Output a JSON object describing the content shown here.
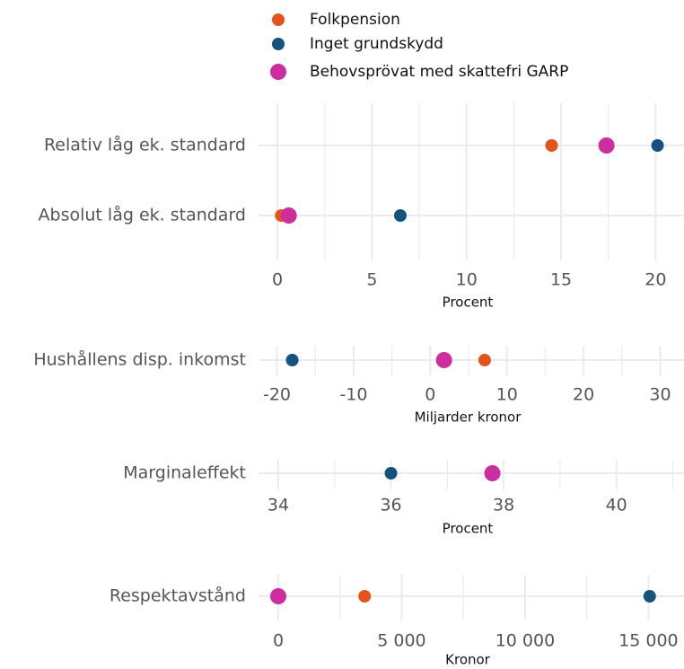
{
  "chart_data": [
    {
      "type": "dot",
      "categories": [
        "Relativ låg ek. standard",
        "Absolut låg ek. standard"
      ],
      "series": [
        {
          "name": "Folkpension",
          "color": "#e4541a",
          "values": [
            14.5,
            0.2
          ]
        },
        {
          "name": "Inget grundskydd",
          "color": "#14527f",
          "values": [
            20.1,
            6.5
          ]
        },
        {
          "name": "Behovsprövat med skattefri GARP",
          "color": "#cc2d9f",
          "values": [
            17.4,
            0.6
          ]
        }
      ],
      "xlim": [
        -1,
        21.5
      ],
      "xticks": [
        0,
        5,
        10,
        15,
        20
      ],
      "xlabel": "Procent",
      "grid": true
    },
    {
      "type": "dot",
      "categories": [
        "Hushållens disp. inkomst"
      ],
      "series": [
        {
          "values": [
            7.1
          ]
        },
        {
          "values": [
            -18.0
          ]
        },
        {
          "values": [
            1.8
          ]
        }
      ],
      "xlim": [
        -22.4,
        33.1
      ],
      "xticks": [
        -20,
        -10,
        0,
        10,
        20,
        30
      ],
      "xlabel": "Miljarder kronor",
      "grid": true
    },
    {
      "type": "dot",
      "categories": [
        "Marginaleffekt"
      ],
      "series": [
        {
          "values": [
            37.8
          ]
        },
        {
          "values": [
            36.0
          ]
        },
        {
          "values": [
            37.8
          ]
        }
      ],
      "xlim": [
        33.65,
        41.2
      ],
      "xticks": [
        34,
        36,
        38,
        40
      ],
      "xlabel": "Procent",
      "grid": true
    },
    {
      "type": "dot",
      "categories": [
        "Respektavstånd"
      ],
      "series": [
        {
          "values": [
            3500
          ]
        },
        {
          "values": [
            15050
          ]
        },
        {
          "values": [
            0
          ]
        }
      ],
      "xlim": [
        -800,
        16440
      ],
      "xticks": [
        0,
        {
          "value": 5000,
          "label": "5 000"
        },
        {
          "value": 10000,
          "label": "10 000"
        },
        {
          "value": 15000,
          "label": "15 000"
        }
      ],
      "xlabel": "Kronor",
      "grid": true
    }
  ]
}
